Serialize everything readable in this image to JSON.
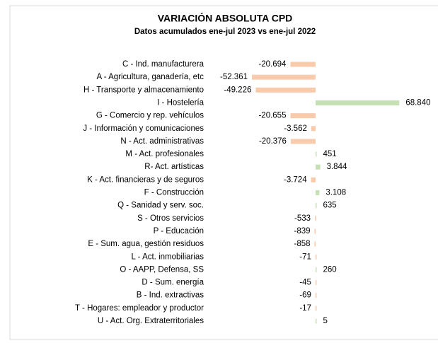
{
  "chart_data": {
    "type": "bar",
    "orientation": "horizontal",
    "title": "VARIACIÓN ABSOLUTA CPD",
    "subtitle": "Datos acumulados  ene-jul 2023 vs ene-jul 2022",
    "categories": [
      "C - Ind. manufacturera",
      "A - Agricultura, ganadería, etc",
      "H - Transporte y almacenamiento",
      "I - Hostelería",
      "G - Comercio y rep. vehículos",
      "J - Información y comunicaciones",
      "N - Act. administrativas",
      "M - Act. profesionales",
      "R-  Act. artísticas",
      "K - Act. financieras y de seguros",
      "F - Construcción",
      "Q - Sanidad y serv. soc.",
      "S - Otros servicios",
      "P - Educación",
      "E - Sum. agua, gestión residuos",
      "L - Act. inmobiliarias",
      "O - AAPP, Defensa, SS",
      "D - Sum. energía",
      "B - Ind. extractivas",
      "T - Hogares: empleador y productor",
      "U - Act. Org. Extraterritoriales"
    ],
    "values": [
      -20694,
      -52361,
      -49226,
      68840,
      -20655,
      -3562,
      -20376,
      451,
      3844,
      -3724,
      3108,
      635,
      -533,
      -839,
      -858,
      -71,
      260,
      -45,
      -69,
      -17,
      5
    ],
    "value_labels": [
      "-20.694",
      "-52.361",
      "-49.226",
      "68.840",
      "-20.655",
      "-3.562",
      "-20.376",
      "451",
      "3.844",
      "-3.724",
      "3.108",
      "635",
      "-533",
      "-839",
      "-858",
      "-71",
      "260",
      "-45",
      "-69",
      "-17",
      "5"
    ],
    "negative_color": "#f8cbad",
    "positive_color": "#c5e0b4"
  }
}
